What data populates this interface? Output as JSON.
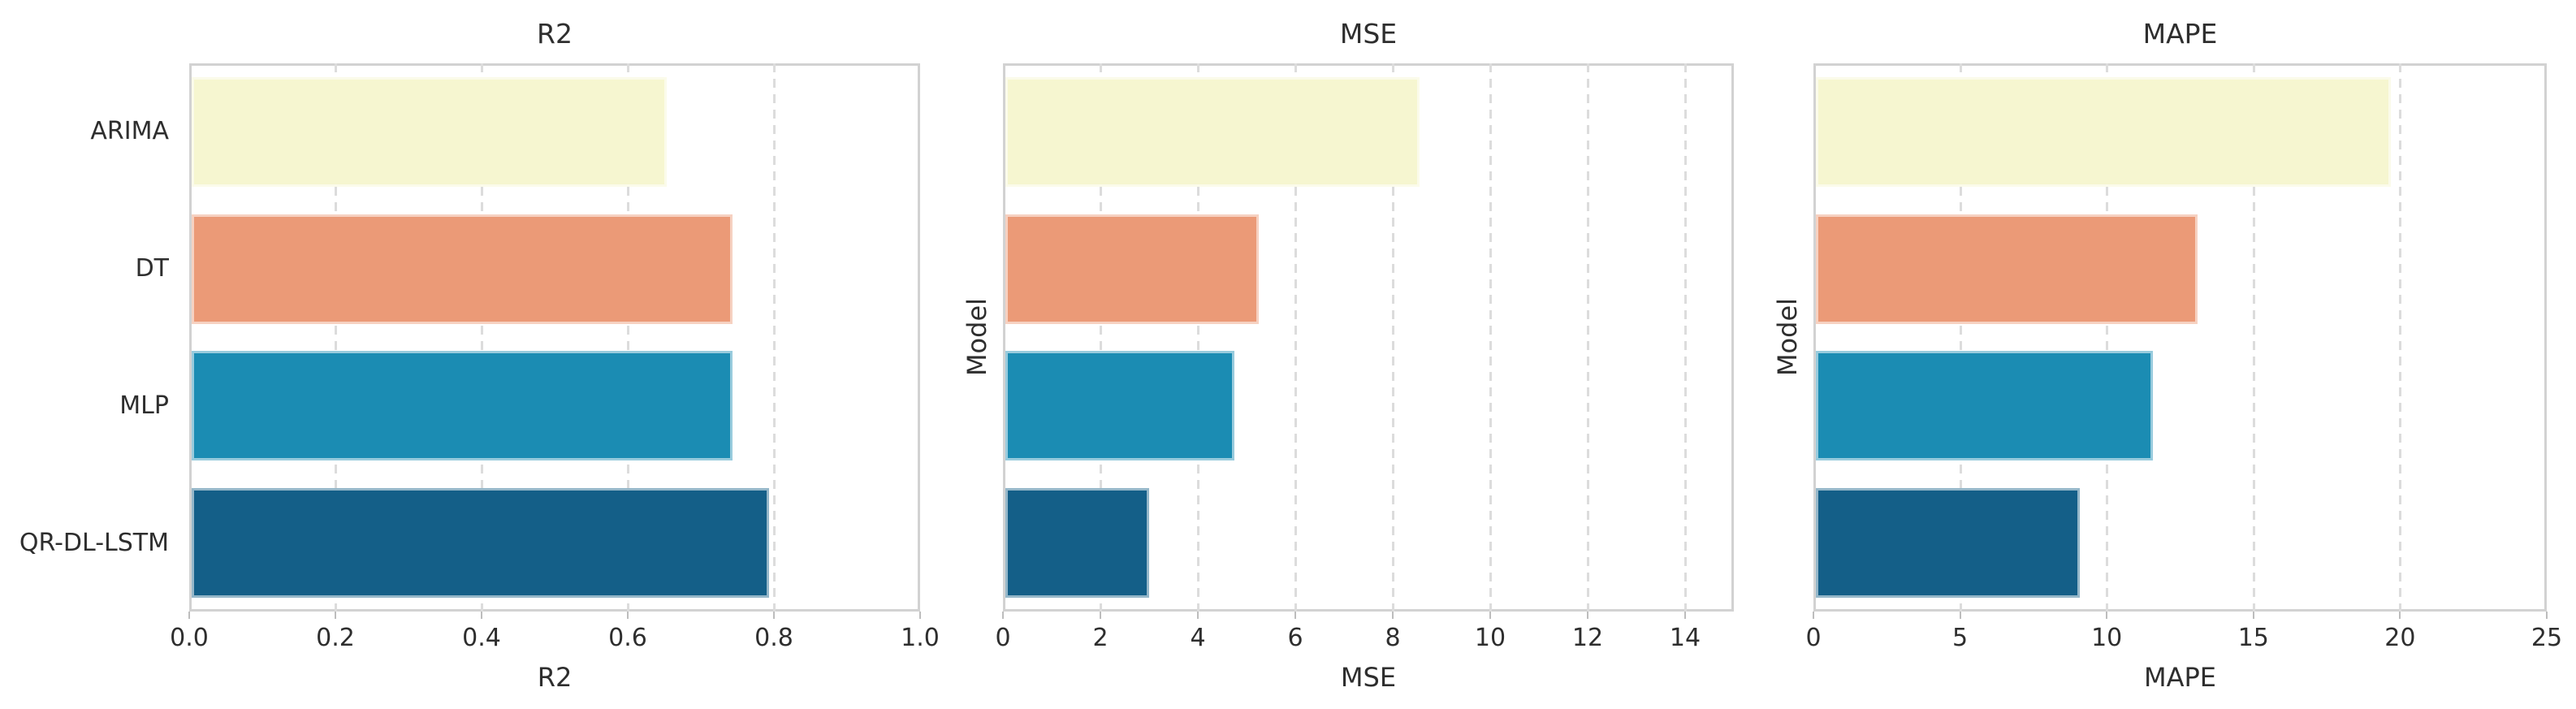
{
  "figure": {
    "models": [
      "ARIMA",
      "DT",
      "MLP",
      "QR-DL-LSTM"
    ],
    "bar_colors": [
      "#f6f6d0",
      "#eb9a77",
      "#1b8cb3",
      "#145f88"
    ],
    "grid_color": "#dcdcdc",
    "border_color": "#d2d2d2",
    "text_color": "#2e2e2e",
    "background_color": "#ffffff"
  },
  "chart_data": [
    {
      "type": "bar",
      "orientation": "horizontal",
      "title": "R2",
      "xlabel": "R2",
      "ylabel": "",
      "categories": [
        "ARIMA",
        "DT",
        "MLP",
        "QR-DL-LSTM"
      ],
      "values": [
        0.65,
        0.74,
        0.74,
        0.79
      ],
      "xlim": [
        0,
        1.0
      ],
      "xticks": [
        0.0,
        0.2,
        0.4,
        0.6,
        0.8,
        1.0
      ],
      "xtick_labels": [
        "0.0",
        "0.2",
        "0.4",
        "0.6",
        "0.8",
        "1.0"
      ],
      "show_ytick_labels": true,
      "grid": "vertical-dashed",
      "legend": "none"
    },
    {
      "type": "bar",
      "orientation": "horizontal",
      "title": "MSE",
      "xlabel": "MSE",
      "ylabel": "Model",
      "categories": [
        "ARIMA",
        "DT",
        "MLP",
        "QR-DL-LSTM"
      ],
      "values": [
        8.5,
        5.2,
        4.7,
        2.95
      ],
      "xlim": [
        0,
        15
      ],
      "xticks": [
        0,
        2,
        4,
        6,
        8,
        10,
        12,
        14
      ],
      "xtick_labels": [
        "0",
        "2",
        "4",
        "6",
        "8",
        "10",
        "12",
        "14"
      ],
      "show_ytick_labels": false,
      "grid": "vertical-dashed",
      "legend": "none"
    },
    {
      "type": "bar",
      "orientation": "horizontal",
      "title": "MAPE",
      "xlabel": "MAPE",
      "ylabel": "Model",
      "categories": [
        "ARIMA",
        "DT",
        "MLP",
        "QR-DL-LSTM"
      ],
      "values": [
        19.6,
        13.0,
        11.5,
        9.0
      ],
      "xlim": [
        0,
        25
      ],
      "xticks": [
        0,
        5,
        10,
        15,
        20,
        25
      ],
      "xtick_labels": [
        "0",
        "5",
        "10",
        "15",
        "20",
        "25"
      ],
      "show_ytick_labels": false,
      "grid": "vertical-dashed",
      "legend": "none"
    }
  ]
}
